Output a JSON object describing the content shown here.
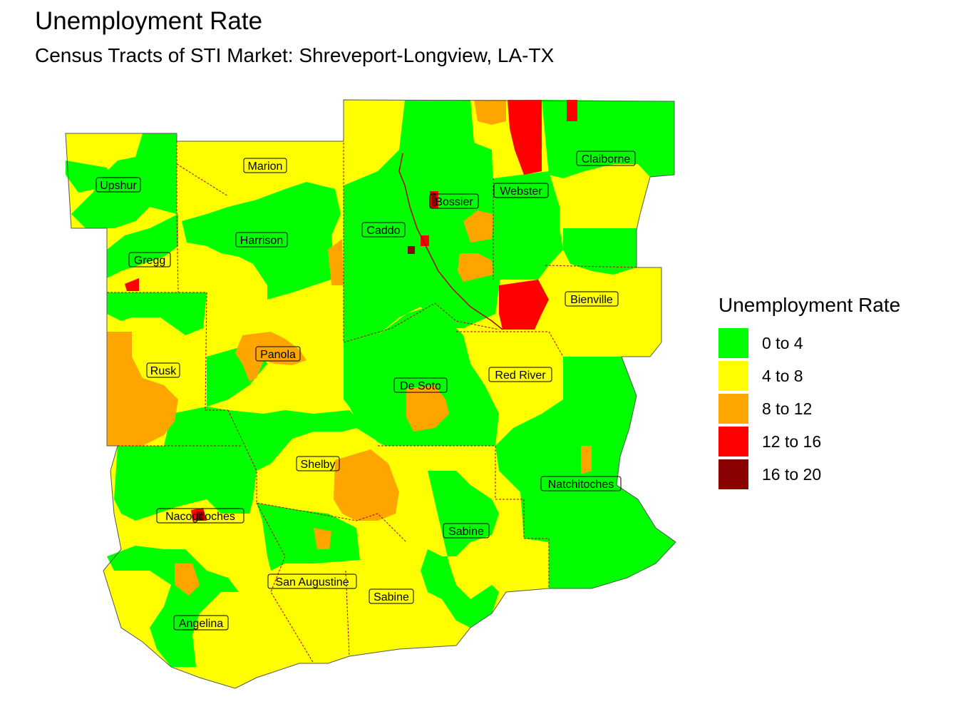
{
  "title": "Unemployment Rate",
  "subtitle": "Census Tracts of STI Market: Shreveport-Longview, LA-TX",
  "legend": {
    "title": "Unemployment Rate",
    "items": [
      {
        "label": "0 to 4",
        "color": "#00ff00"
      },
      {
        "label": "4 to 8",
        "color": "#ffff00"
      },
      {
        "label": "8 to 12",
        "color": "#ffa500"
      },
      {
        "label": "12 to 16",
        "color": "#ff0000"
      },
      {
        "label": "16 to 20",
        "color": "#8b0000"
      }
    ]
  },
  "counties": [
    "Upshur",
    "Marion",
    "Harrison",
    "Gregg",
    "Rusk",
    "Panola",
    "Caddo",
    "Bossier",
    "Webster",
    "Claiborne",
    "Bienville",
    "Red River",
    "De Soto",
    "Shelby",
    "Nacogdoches",
    "Natchitoches",
    "Sabine",
    "San Augustine",
    "Sabine",
    "Angelina"
  ]
}
